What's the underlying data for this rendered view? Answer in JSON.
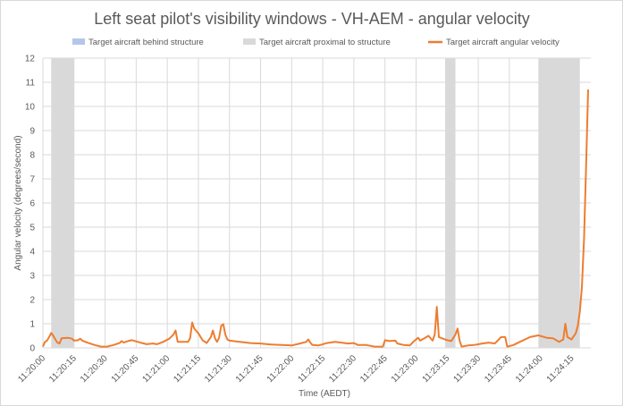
{
  "chart_data": {
    "type": "line",
    "title": "Left seat pilot's visibility windows - VH-AEM - angular velocity",
    "xlabel": "Time (AEDT)",
    "ylabel": "Angular velocity (degrees/second)",
    "ylim": [
      0,
      12
    ],
    "yticks": [
      0,
      1,
      2,
      3,
      4,
      5,
      6,
      7,
      8,
      9,
      10,
      11,
      12
    ],
    "xrange_seconds": [
      "11:20:00",
      "11:24:23"
    ],
    "xtick_labels": [
      "11:20:00",
      "11:20:15",
      "11:20:30",
      "11:20:45",
      "11:21:00",
      "11:21:15",
      "11:21:30",
      "11:21:45",
      "11:22:00",
      "11:22:15",
      "11:22:30",
      "11:22:45",
      "11:23:00",
      "11:23:15",
      "11:23:30",
      "11:23:45",
      "11:24:00",
      "11:24:15"
    ],
    "grid": true,
    "legend_position": "top",
    "legend": [
      {
        "label": "Target aircraft behind structure",
        "kind": "area",
        "color": "#b4c7e7"
      },
      {
        "label": "Target aircraft proximal to structure",
        "kind": "area",
        "color": "#d9d9d9"
      },
      {
        "label": "Target aircraft angular velocity",
        "kind": "line",
        "color": "#ed7d31"
      }
    ],
    "bands_proximal_to_structure": [
      {
        "start": "11:20:04",
        "end": "11:20:15"
      },
      {
        "start": "11:23:14",
        "end": "11:23:19"
      },
      {
        "start": "11:23:59",
        "end": "11:24:19"
      }
    ],
    "series": [
      {
        "name": "Target aircraft angular velocity",
        "color": "#ed7d31",
        "points": [
          [
            "11:20:00",
            0.05
          ],
          [
            "11:20:01",
            0.25
          ],
          [
            "11:20:02",
            0.3
          ],
          [
            "11:20:03",
            0.45
          ],
          [
            "11:20:04",
            0.62
          ],
          [
            "11:20:05",
            0.5
          ],
          [
            "11:20:06",
            0.35
          ],
          [
            "11:20:07",
            0.22
          ],
          [
            "11:20:08",
            0.18
          ],
          [
            "11:20:09",
            0.4
          ],
          [
            "11:20:12",
            0.42
          ],
          [
            "11:20:14",
            0.38
          ],
          [
            "11:20:15",
            0.3
          ],
          [
            "11:20:17",
            0.32
          ],
          [
            "11:20:18",
            0.38
          ],
          [
            "11:20:19",
            0.3
          ],
          [
            "11:20:22",
            0.2
          ],
          [
            "11:20:25",
            0.12
          ],
          [
            "11:20:28",
            0.05
          ],
          [
            "11:20:31",
            0.05
          ],
          [
            "11:20:34",
            0.12
          ],
          [
            "11:20:37",
            0.2
          ],
          [
            "11:20:38",
            0.28
          ],
          [
            "11:20:39",
            0.22
          ],
          [
            "11:20:41",
            0.28
          ],
          [
            "11:20:43",
            0.32
          ],
          [
            "11:20:47",
            0.22
          ],
          [
            "11:20:50",
            0.15
          ],
          [
            "11:20:53",
            0.18
          ],
          [
            "11:20:55",
            0.15
          ],
          [
            "11:20:58",
            0.25
          ],
          [
            "11:21:01",
            0.38
          ],
          [
            "11:21:03",
            0.55
          ],
          [
            "11:21:04",
            0.72
          ],
          [
            "11:21:05",
            0.25
          ],
          [
            "11:21:10",
            0.25
          ],
          [
            "11:21:11",
            0.4
          ],
          [
            "11:21:12",
            1.05
          ],
          [
            "11:21:13",
            0.8
          ],
          [
            "11:21:15",
            0.6
          ],
          [
            "11:21:17",
            0.32
          ],
          [
            "11:21:19",
            0.2
          ],
          [
            "11:21:21",
            0.45
          ],
          [
            "11:21:22",
            0.72
          ],
          [
            "11:21:23",
            0.4
          ],
          [
            "11:21:24",
            0.25
          ],
          [
            "11:21:25",
            0.42
          ],
          [
            "11:21:26",
            0.92
          ],
          [
            "11:21:27",
            0.98
          ],
          [
            "11:21:28",
            0.55
          ],
          [
            "11:21:29",
            0.35
          ],
          [
            "11:21:30",
            0.3
          ],
          [
            "11:21:35",
            0.25
          ],
          [
            "11:21:40",
            0.2
          ],
          [
            "11:21:45",
            0.18
          ],
          [
            "11:21:50",
            0.14
          ],
          [
            "11:21:55",
            0.12
          ],
          [
            "11:22:00",
            0.1
          ],
          [
            "11:22:04",
            0.18
          ],
          [
            "11:22:07",
            0.25
          ],
          [
            "11:22:08",
            0.35
          ],
          [
            "11:22:09",
            0.22
          ],
          [
            "11:22:10",
            0.12
          ],
          [
            "11:22:13",
            0.1
          ],
          [
            "11:22:17",
            0.2
          ],
          [
            "11:22:21",
            0.25
          ],
          [
            "11:22:24",
            0.22
          ],
          [
            "11:22:27",
            0.18
          ],
          [
            "11:22:30",
            0.2
          ],
          [
            "11:22:32",
            0.12
          ],
          [
            "11:22:36",
            0.12
          ],
          [
            "11:22:40",
            0.05
          ],
          [
            "11:22:44",
            0.05
          ],
          [
            "11:22:45",
            0.32
          ],
          [
            "11:22:47",
            0.28
          ],
          [
            "11:22:50",
            0.3
          ],
          [
            "11:22:51",
            0.18
          ],
          [
            "11:22:54",
            0.12
          ],
          [
            "11:22:57",
            0.1
          ],
          [
            "11:22:59",
            0.28
          ],
          [
            "11:23:01",
            0.42
          ],
          [
            "11:23:02",
            0.3
          ],
          [
            "11:23:04",
            0.4
          ],
          [
            "11:23:06",
            0.5
          ],
          [
            "11:23:08",
            0.3
          ],
          [
            "11:23:09",
            0.55
          ],
          [
            "11:23:10",
            1.7
          ],
          [
            "11:23:11",
            0.45
          ],
          [
            "11:23:13",
            0.38
          ],
          [
            "11:23:15",
            0.32
          ],
          [
            "11:23:17",
            0.28
          ],
          [
            "11:23:19",
            0.55
          ],
          [
            "11:23:20",
            0.8
          ],
          [
            "11:23:21",
            0.3
          ],
          [
            "11:23:22",
            0.05
          ],
          [
            "11:23:25",
            0.1
          ],
          [
            "11:23:28",
            0.12
          ],
          [
            "11:23:32",
            0.18
          ],
          [
            "11:23:35",
            0.22
          ],
          [
            "11:23:38",
            0.18
          ],
          [
            "11:23:41",
            0.45
          ],
          [
            "11:23:43",
            0.45
          ],
          [
            "11:23:44",
            0.05
          ],
          [
            "11:23:47",
            0.12
          ],
          [
            "11:23:50",
            0.25
          ],
          [
            "11:23:55",
            0.45
          ],
          [
            "11:23:59",
            0.52
          ],
          [
            "11:24:03",
            0.42
          ],
          [
            "11:24:06",
            0.4
          ],
          [
            "11:24:09",
            0.25
          ],
          [
            "11:24:11",
            0.35
          ],
          [
            "11:24:12",
            1.0
          ],
          [
            "11:24:13",
            0.45
          ],
          [
            "11:24:15",
            0.35
          ],
          [
            "11:24:17",
            0.6
          ],
          [
            "11:24:18",
            0.9
          ],
          [
            "11:24:19",
            1.5
          ],
          [
            "11:24:20",
            2.5
          ],
          [
            "11:24:21",
            4.5
          ],
          [
            "11:24:22",
            7.5
          ],
          [
            "11:24:23",
            10.7
          ]
        ]
      }
    ]
  }
}
